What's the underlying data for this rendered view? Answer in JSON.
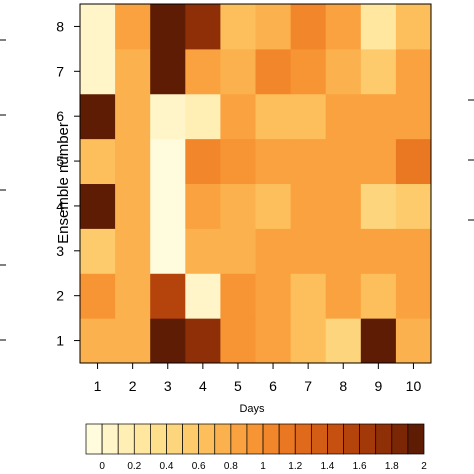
{
  "chart_data": {
    "type": "heatmap",
    "xlabel": "Days",
    "ylabel": "Ensemble number",
    "x_categories": [
      "1",
      "2",
      "3",
      "4",
      "5",
      "6",
      "7",
      "8",
      "9",
      "10"
    ],
    "y_categories": [
      "1",
      "2",
      "3",
      "4",
      "5",
      "6",
      "7",
      "8"
    ],
    "z": [
      [
        0.8,
        0.8,
        2.0,
        1.8,
        1.0,
        0.9,
        0.7,
        0.5,
        2.0,
        0.8
      ],
      [
        1.0,
        0.8,
        1.6,
        0.1,
        1.0,
        0.9,
        0.7,
        0.9,
        0.7,
        0.9
      ],
      [
        0.6,
        0.8,
        0.0,
        0.8,
        0.8,
        0.9,
        0.9,
        0.9,
        0.9,
        0.9
      ],
      [
        2.0,
        0.8,
        0.0,
        0.9,
        0.8,
        0.7,
        0.9,
        0.9,
        0.5,
        0.6
      ],
      [
        0.7,
        0.8,
        0.0,
        1.1,
        1.0,
        0.9,
        0.9,
        0.9,
        0.9,
        1.2
      ],
      [
        2.0,
        0.8,
        0.1,
        0.2,
        0.9,
        0.7,
        0.7,
        0.9,
        0.9,
        0.9
      ],
      [
        0.1,
        0.8,
        2.0,
        0.9,
        0.8,
        1.1,
        1.0,
        0.8,
        0.6,
        0.9
      ],
      [
        0.1,
        0.9,
        2.0,
        1.8,
        0.7,
        0.8,
        1.1,
        0.9,
        0.3,
        0.7
      ]
    ],
    "color_scale": {
      "levels": [
        0,
        0.1,
        0.2,
        0.3,
        0.4,
        0.5,
        0.6,
        0.7,
        0.8,
        0.9,
        1.0,
        1.1,
        1.2,
        1.3,
        1.4,
        1.5,
        1.6,
        1.7,
        1.8,
        1.9,
        2.0
      ],
      "colors": [
        "#fffbdd",
        "#fff5c8",
        "#ffefb4",
        "#ffe7a0",
        "#fedf8c",
        "#fdd57c",
        "#fdcb6c",
        "#fcbf5c",
        "#fbb14d",
        "#f9a23f",
        "#f79433",
        "#f2862a",
        "#ea7822",
        "#e06a1c",
        "#d45d16",
        "#c55010",
        "#b5440c",
        "#a33909",
        "#8f2f07",
        "#7b2605",
        "#5e1c05"
      ],
      "tick_labels": [
        "0",
        "0.2",
        "0.4",
        "0.6",
        "0.8",
        "1",
        "1.2",
        "1.4",
        "1.6",
        "1.8",
        "2"
      ]
    }
  }
}
